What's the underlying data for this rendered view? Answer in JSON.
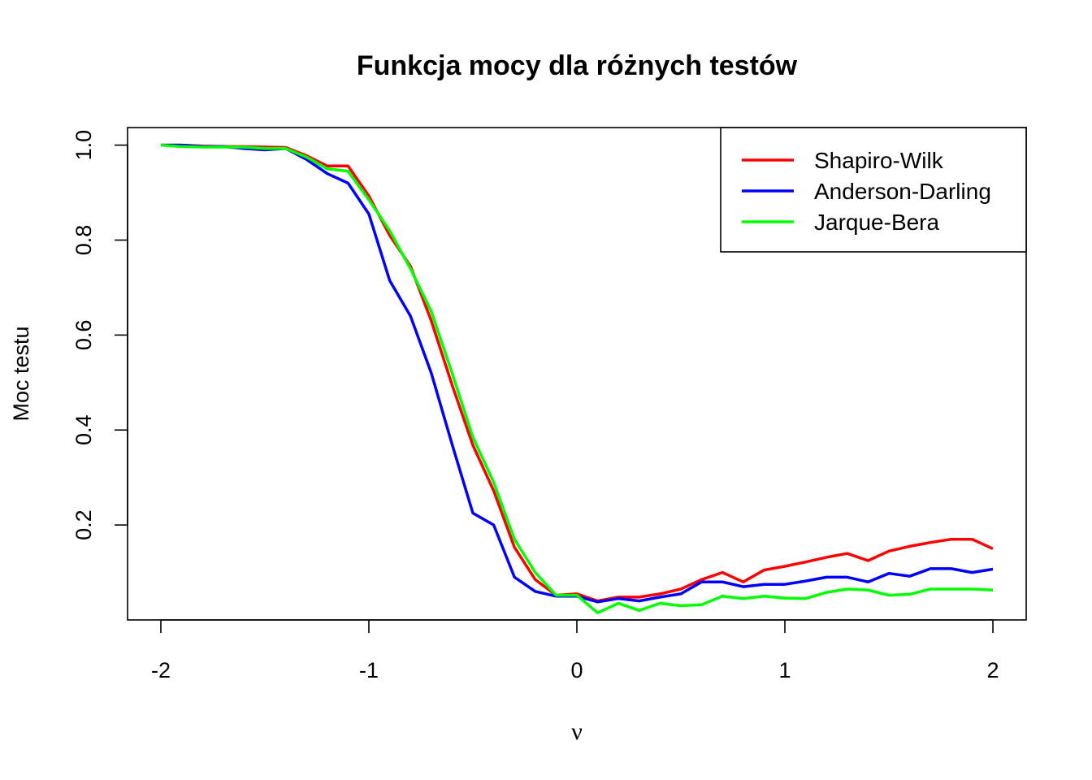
{
  "chart_data": {
    "type": "line",
    "title": "Funkcja mocy dla różnych testów",
    "xlabel": "ν",
    "ylabel": "Moc testu",
    "xlim": [
      -2.16,
      2.16
    ],
    "ylim": [
      0.0,
      1.037
    ],
    "xticks": [
      -2,
      -1,
      0,
      1,
      2
    ],
    "xtick_labels": [
      "-2",
      "-1",
      "0",
      "1",
      "2"
    ],
    "yticks": [
      0.2,
      0.4,
      0.6,
      0.8,
      1.0
    ],
    "ytick_labels": [
      "0.2",
      "0.4",
      "0.6",
      "0.8",
      "1.0"
    ],
    "legend_position": "top-right",
    "grid": false,
    "x": [
      -2.0,
      -1.9,
      -1.8,
      -1.7,
      -1.6,
      -1.5,
      -1.4,
      -1.3,
      -1.2,
      -1.1,
      -1.0,
      -0.9,
      -0.8,
      -0.7,
      -0.6,
      -0.5,
      -0.4,
      -0.3,
      -0.2,
      -0.1,
      0.0,
      0.1,
      0.2,
      0.3,
      0.4,
      0.5,
      0.6,
      0.7,
      0.8,
      0.9,
      1.0,
      1.1,
      1.2,
      1.3,
      1.4,
      1.5,
      1.6,
      1.7,
      1.8,
      1.9,
      2.0
    ],
    "series": [
      {
        "name": "Shapiro-Wilk",
        "color": "#ff0000",
        "values": [
          1.0,
          1.0,
          0.998,
          0.997,
          0.997,
          0.996,
          0.995,
          0.978,
          0.956,
          0.956,
          0.893,
          0.81,
          0.745,
          0.63,
          0.495,
          0.368,
          0.272,
          0.153,
          0.085,
          0.052,
          0.055,
          0.04,
          0.048,
          0.048,
          0.055,
          0.065,
          0.085,
          0.1,
          0.08,
          0.105,
          0.113,
          0.122,
          0.132,
          0.14,
          0.125,
          0.145,
          0.155,
          0.163,
          0.17,
          0.17,
          0.15
        ]
      },
      {
        "name": "Anderson-Darling",
        "color": "#0000ff",
        "values": [
          1.0,
          1.0,
          0.997,
          0.997,
          0.993,
          0.99,
          0.993,
          0.97,
          0.94,
          0.92,
          0.855,
          0.715,
          0.64,
          0.52,
          0.37,
          0.225,
          0.2,
          0.09,
          0.06,
          0.05,
          0.05,
          0.038,
          0.045,
          0.04,
          0.048,
          0.055,
          0.08,
          0.08,
          0.07,
          0.075,
          0.075,
          0.082,
          0.09,
          0.09,
          0.08,
          0.098,
          0.092,
          0.108,
          0.108,
          0.1,
          0.107
        ]
      },
      {
        "name": "Jarque-Bera",
        "color": "#00ff00",
        "values": [
          1.0,
          0.997,
          0.996,
          0.996,
          0.996,
          0.993,
          0.993,
          0.975,
          0.95,
          0.945,
          0.885,
          0.82,
          0.74,
          0.65,
          0.52,
          0.385,
          0.29,
          0.17,
          0.1,
          0.052,
          0.052,
          0.015,
          0.035,
          0.02,
          0.035,
          0.03,
          0.032,
          0.05,
          0.045,
          0.05,
          0.046,
          0.045,
          0.058,
          0.065,
          0.063,
          0.052,
          0.054,
          0.065,
          0.065,
          0.065,
          0.063
        ]
      }
    ]
  }
}
